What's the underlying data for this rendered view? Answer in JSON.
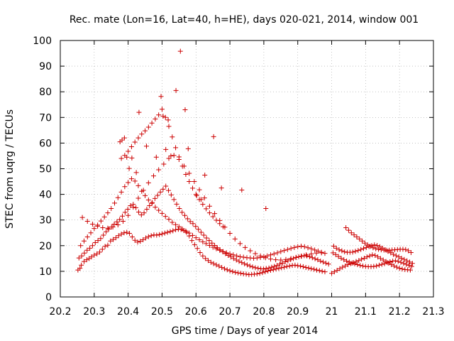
{
  "chart_data": {
    "type": "scatter",
    "title": "Rec. mate (Lon=16, Lat=40, h=HE), days 020-021, 2014, window 001",
    "xlabel": "GPS time / Days of year 2014",
    "ylabel": "STEC from uqrg / TECUs",
    "xlim": [
      20.2,
      21.3
    ],
    "ylim": [
      0,
      100
    ],
    "xticks": [
      20.2,
      20.3,
      20.4,
      20.5,
      20.6,
      20.7,
      20.8,
      20.9,
      21.0,
      21.1,
      21.2,
      21.3
    ],
    "xtick_labels": [
      "20.2",
      "20.3",
      "20.4",
      "20.5",
      "20.6",
      "20.7",
      "20.8",
      "20.9",
      "21",
      "21.1",
      "21.2",
      "21.3"
    ],
    "yticks": [
      0,
      10,
      20,
      30,
      40,
      50,
      60,
      70,
      80,
      90,
      100
    ],
    "ytick_labels": [
      "0",
      "10",
      "20",
      "30",
      "40",
      "50",
      "60",
      "70",
      "80",
      "90",
      "100"
    ],
    "grid": true,
    "marker": "plus",
    "color": "#cc0000",
    "series": [
      {
        "x": [
          20.252,
          20.258,
          20.262,
          20.27,
          20.278,
          20.285,
          20.292,
          20.3,
          20.308,
          20.316,
          20.324,
          20.332,
          20.34,
          20.348,
          20.356,
          20.364,
          20.372,
          20.38,
          20.388,
          20.396,
          20.404,
          20.412,
          20.42,
          20.428,
          20.436,
          20.444,
          20.452,
          20.46,
          20.468,
          20.476,
          20.484,
          20.492,
          20.5,
          20.508,
          20.516,
          20.524,
          20.532,
          20.54,
          20.548,
          20.556,
          20.564,
          20.572,
          20.58,
          20.588,
          20.596,
          20.604,
          20.612,
          20.62,
          20.628,
          20.636,
          20.644,
          20.652,
          20.66,
          20.668,
          20.676,
          20.684,
          20.692,
          20.7,
          20.708,
          20.716,
          20.724,
          20.732,
          20.74,
          20.748,
          20.756,
          20.764,
          20.772,
          20.78,
          20.788,
          20.796,
          20.804,
          20.812,
          20.82,
          20.828,
          20.836,
          20.844,
          20.852,
          20.86,
          20.868,
          20.876,
          20.884,
          20.892,
          20.9,
          20.908,
          20.916,
          20.924,
          20.932,
          20.94,
          20.948,
          20.956,
          20.964,
          20.972,
          20.98
        ],
        "y": [
          10.5,
          11.2,
          12.4,
          13.8,
          14.5,
          15.0,
          15.6,
          16.3,
          16.8,
          17.5,
          18.6,
          19.7,
          20.2,
          21.8,
          22.4,
          23.1,
          23.9,
          24.5,
          25.0,
          25.2,
          24.8,
          23.4,
          22.1,
          21.4,
          21.7,
          22.3,
          23.0,
          23.5,
          23.9,
          24.2,
          24.1,
          24.3,
          24.6,
          24.9,
          25.2,
          25.5,
          25.8,
          26.2,
          26.4,
          26.3,
          25.9,
          25.2,
          23.8,
          22.0,
          20.4,
          18.9,
          17.3,
          16.0,
          15.0,
          14.2,
          13.5,
          13.0,
          12.5,
          12.0,
          11.5,
          11.0,
          10.6,
          10.2,
          9.9,
          9.6,
          9.4,
          9.2,
          9.0,
          8.9,
          8.7,
          8.8,
          8.9,
          9.0,
          9.2,
          9.5,
          9.8,
          10.1,
          10.4,
          10.6,
          10.9,
          11.1,
          11.4,
          11.6,
          11.9,
          12.1,
          12.3,
          12.4,
          12.2,
          12.0,
          11.8,
          11.5,
          11.3,
          11.0,
          10.8,
          10.5,
          10.3,
          10.0,
          9.8
        ]
      },
      {
        "x": [
          20.255,
          20.263,
          20.271,
          20.279,
          20.287,
          20.295,
          20.303,
          20.311,
          20.319,
          20.327,
          20.335,
          20.343,
          20.351,
          20.359,
          20.367,
          20.375,
          20.383,
          20.391,
          20.399,
          20.407,
          20.415,
          20.423,
          20.431,
          20.439,
          20.447,
          20.455,
          20.463,
          20.471,
          20.479,
          20.487,
          20.495,
          20.503,
          20.511,
          20.519,
          20.527,
          20.535,
          20.543,
          20.551,
          20.559,
          20.567,
          20.575,
          20.583,
          20.591,
          20.599,
          20.607,
          20.615,
          20.623,
          20.631,
          20.639,
          20.647,
          20.655,
          20.663,
          20.671,
          20.679,
          20.687,
          20.695,
          20.703,
          20.711,
          20.719,
          20.727,
          20.735,
          20.743,
          20.751,
          20.759,
          20.767,
          20.775,
          20.783,
          20.791,
          20.799,
          20.807,
          20.815,
          20.823,
          20.831,
          20.839,
          20.847,
          20.855,
          20.863,
          20.871,
          20.879,
          20.887,
          20.895,
          20.903,
          20.911,
          20.919,
          20.927,
          20.935,
          20.943,
          20.951,
          20.959,
          20.967,
          20.975,
          20.983,
          20.991
        ],
        "y": [
          15.2,
          16.0,
          17.1,
          18.2,
          19.0,
          20.0,
          21.2,
          22.0,
          22.8,
          24.1,
          25.4,
          26.5,
          27.3,
          28.4,
          29.3,
          30.2,
          31.5,
          33.0,
          34.2,
          35.6,
          36.1,
          34.8,
          33.1,
          32.0,
          32.8,
          34.2,
          35.6,
          36.8,
          38.4,
          39.6,
          40.9,
          42.0,
          43.2,
          41.5,
          39.8,
          38.0,
          36.2,
          34.5,
          33.0,
          31.8,
          30.5,
          29.4,
          28.6,
          27.5,
          26.4,
          25.2,
          24.1,
          23.0,
          22.0,
          21.0,
          20.1,
          19.2,
          18.4,
          17.6,
          16.9,
          16.2,
          15.6,
          15.0,
          14.4,
          13.9,
          13.4,
          12.9,
          12.5,
          12.1,
          11.7,
          11.4,
          11.2,
          11.0,
          10.9,
          11.1,
          11.3,
          11.6,
          11.9,
          12.3,
          12.8,
          13.2,
          13.7,
          14.1,
          14.6,
          15.0,
          15.4,
          15.7,
          15.9,
          16.1,
          16.0,
          15.7,
          15.3,
          14.9,
          14.5,
          14.0,
          13.6,
          13.2,
          12.8
        ]
      },
      {
        "x": [
          20.26,
          20.27,
          20.28,
          20.29,
          20.3,
          20.31,
          20.32,
          20.33,
          20.34,
          20.35,
          20.36,
          20.37,
          20.38,
          20.39,
          20.4,
          20.41,
          20.42,
          20.43,
          20.44,
          20.45,
          20.46,
          20.47,
          20.48,
          20.49,
          20.5,
          20.51,
          20.52,
          20.53,
          20.54,
          20.55,
          20.56,
          20.57,
          20.58,
          20.59,
          20.6,
          20.61,
          20.62,
          20.63,
          20.64,
          20.65,
          20.66,
          20.67,
          20.68,
          20.69,
          20.7,
          20.71,
          20.72,
          20.73,
          20.74,
          20.75,
          20.76,
          20.77,
          20.78,
          20.79,
          20.8,
          20.81,
          20.82,
          20.83,
          20.84,
          20.85,
          20.86,
          20.87,
          20.88,
          20.89,
          20.9,
          20.91,
          20.92,
          20.93,
          20.94,
          20.95,
          20.96,
          20.97,
          20.98
        ],
        "y": [
          20.0,
          21.8,
          23.4,
          25.0,
          26.7,
          28.0,
          29.6,
          31.2,
          32.8,
          34.5,
          36.6,
          38.7,
          40.9,
          43.0,
          44.6,
          46.1,
          45.2,
          43.4,
          41.2,
          39.5,
          37.8,
          36.5,
          35.0,
          33.8,
          32.6,
          31.4,
          30.3,
          29.1,
          28.2,
          27.4,
          26.5,
          25.7,
          24.9,
          24.0,
          23.1,
          22.3,
          21.5,
          20.8,
          20.1,
          19.4,
          18.8,
          18.2,
          17.7,
          17.2,
          16.8,
          16.4,
          16.0,
          15.7,
          15.5,
          15.3,
          15.2,
          15.1,
          15.2,
          15.4,
          15.7,
          16.0,
          16.4,
          16.8,
          17.2,
          17.7,
          18.1,
          18.5,
          18.9,
          19.3,
          19.6,
          19.8,
          19.6,
          19.2,
          18.8,
          18.3,
          17.9,
          17.4,
          17.0
        ]
      },
      {
        "x": [
          20.265,
          20.28,
          20.295,
          20.31,
          20.325,
          20.34,
          20.355,
          20.37,
          20.385,
          20.4,
          20.415,
          20.43,
          20.445,
          20.46,
          20.475,
          20.49,
          20.505,
          20.52,
          20.535,
          20.55,
          20.565,
          20.58,
          20.595,
          20.61,
          20.625,
          20.64,
          20.655,
          20.67,
          20.685,
          20.7,
          20.715,
          20.73,
          20.745,
          20.76,
          20.775,
          20.79,
          20.805,
          20.82,
          20.835,
          20.85,
          20.865,
          20.88,
          20.895,
          20.91,
          20.925,
          20.94,
          20.955,
          20.97
        ],
        "y": [
          31.0,
          29.5,
          28.4,
          27.6,
          27.0,
          26.8,
          27.3,
          28.1,
          29.5,
          31.8,
          35.0,
          38.5,
          41.6,
          44.5,
          47.2,
          49.6,
          51.8,
          54.0,
          55.2,
          53.6,
          51.0,
          48.2,
          45.0,
          41.8,
          38.6,
          35.4,
          32.5,
          29.8,
          27.2,
          24.8,
          22.6,
          20.8,
          19.3,
          18.0,
          16.9,
          16.0,
          15.3,
          14.8,
          14.5,
          14.4,
          14.6,
          15.0,
          15.4,
          15.9,
          16.4,
          16.8,
          17.1,
          17.2
        ]
      },
      {
        "x": [
          20.38,
          20.39,
          20.4,
          20.41,
          20.42,
          20.43,
          20.44,
          20.45,
          20.46,
          20.47,
          20.48,
          20.49,
          20.5,
          20.51,
          20.52,
          20.53,
          20.54,
          20.55,
          20.56,
          20.57,
          20.58,
          20.59,
          20.6,
          20.61,
          20.62,
          20.63,
          20.64,
          20.65,
          20.66,
          20.67,
          20.68
        ],
        "y": [
          54.0,
          55.2,
          56.8,
          58.6,
          60.4,
          62.0,
          63.5,
          64.8,
          66.2,
          67.8,
          69.4,
          71.0,
          73.2,
          70.0,
          66.5,
          62.4,
          58.2,
          54.6,
          51.0,
          47.8,
          45.0,
          42.4,
          40.0,
          38.0,
          36.1,
          34.4,
          32.8,
          31.3,
          29.9,
          28.6,
          27.4
        ]
      },
      {
        "x": [
          20.376,
          20.382,
          20.389,
          20.396,
          20.403,
          20.411,
          20.424,
          20.432,
          20.454,
          20.483,
          20.497,
          20.503,
          20.511,
          20.518,
          20.526,
          20.541,
          20.554,
          20.568,
          20.577,
          20.602,
          20.615,
          20.626,
          20.652,
          20.675,
          20.735,
          20.806
        ],
        "y": [
          60.5,
          61.2,
          62.0,
          54.5,
          50.1,
          54.2,
          48.5,
          72.0,
          58.8,
          54.5,
          78.2,
          70.5,
          57.5,
          69.0,
          55.0,
          80.5,
          95.8,
          73.0,
          57.8,
          39.5,
          38.0,
          47.5,
          62.5,
          42.5,
          41.7,
          34.5
        ]
      },
      {
        "x": [
          21.0,
          21.008,
          21.016,
          21.024,
          21.032,
          21.04,
          21.048,
          21.056,
          21.064,
          21.072,
          21.08,
          21.088,
          21.096,
          21.104,
          21.112,
          21.12,
          21.128,
          21.136,
          21.144,
          21.152,
          21.16,
          21.168,
          21.176,
          21.184,
          21.192,
          21.2,
          21.208,
          21.216,
          21.224,
          21.232
        ],
        "y": [
          9.2,
          9.8,
          10.4,
          11.0,
          11.6,
          12.1,
          12.6,
          13.0,
          13.4,
          13.8,
          14.2,
          14.7,
          15.1,
          15.6,
          16.0,
          16.4,
          16.2,
          15.6,
          15.0,
          14.4,
          13.8,
          13.2,
          12.6,
          12.1,
          11.6,
          11.2,
          10.9,
          10.7,
          10.6,
          10.5
        ]
      },
      {
        "x": [
          21.004,
          21.012,
          21.02,
          21.028,
          21.036,
          21.044,
          21.052,
          21.06,
          21.068,
          21.076,
          21.084,
          21.092,
          21.1,
          21.108,
          21.116,
          21.124,
          21.132,
          21.14,
          21.148,
          21.156,
          21.164,
          21.172,
          21.18,
          21.188,
          21.196,
          21.204,
          21.212,
          21.22,
          21.228,
          21.236
        ],
        "y": [
          17.2,
          16.5,
          15.8,
          15.1,
          14.5,
          14.0,
          13.6,
          13.2,
          12.9,
          12.6,
          12.3,
          12.1,
          11.9,
          11.8,
          11.8,
          11.9,
          12.1,
          12.4,
          12.7,
          13.0,
          13.4,
          13.7,
          14.0,
          14.1,
          13.9,
          13.5,
          13.1,
          12.7,
          12.3,
          11.9
        ]
      },
      {
        "x": [
          21.006,
          21.014,
          21.022,
          21.03,
          21.038,
          21.046,
          21.054,
          21.062,
          21.07,
          21.078,
          21.086,
          21.094,
          21.102,
          21.11,
          21.118,
          21.126,
          21.134,
          21.142,
          21.15,
          21.158,
          21.166,
          21.174,
          21.182,
          21.19,
          21.198,
          21.206,
          21.214,
          21.222,
          21.23,
          21.238
        ],
        "y": [
          19.8,
          19.0,
          18.4,
          18.0,
          17.6,
          17.4,
          17.4,
          17.5,
          17.8,
          18.1,
          18.5,
          18.9,
          19.3,
          19.7,
          20.0,
          20.3,
          20.1,
          19.6,
          19.0,
          18.4,
          17.8,
          17.2,
          16.6,
          16.1,
          15.6,
          15.1,
          14.6,
          14.1,
          13.6,
          13.1
        ]
      },
      {
        "x": [
          21.042,
          21.05,
          21.058,
          21.066,
          21.074,
          21.082,
          21.09,
          21.098,
          21.106,
          21.114,
          21.122,
          21.13,
          21.138,
          21.146,
          21.154,
          21.162,
          21.17,
          21.178,
          21.186,
          21.194,
          21.202,
          21.21,
          21.218,
          21.226,
          21.234
        ],
        "y": [
          27.0,
          26.0,
          25.0,
          24.2,
          23.4,
          22.6,
          21.8,
          21.0,
          20.3,
          19.7,
          19.2,
          18.8,
          18.6,
          18.4,
          18.3,
          18.2,
          18.2,
          18.3,
          18.4,
          18.5,
          18.6,
          18.6,
          18.5,
          18.0,
          17.3
        ]
      }
    ]
  }
}
